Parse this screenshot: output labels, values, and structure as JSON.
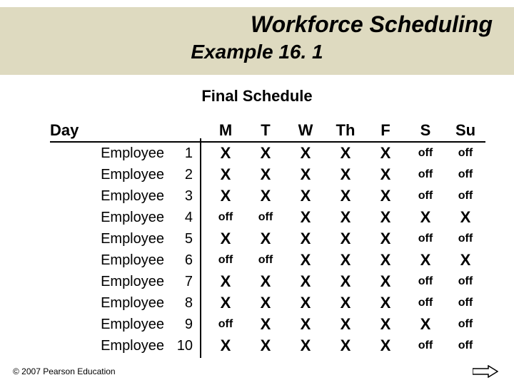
{
  "title": "Workforce Scheduling",
  "subtitle": "Example 16. 1",
  "section_title": "Final Schedule",
  "day_label": "Day",
  "days": [
    "M",
    "T",
    "W",
    "Th",
    "F",
    "S",
    "Su"
  ],
  "employee_label": "Employee",
  "rows": [
    {
      "n": "1",
      "cells": [
        "X",
        "X",
        "X",
        "X",
        "X",
        "off",
        "off"
      ]
    },
    {
      "n": "2",
      "cells": [
        "X",
        "X",
        "X",
        "X",
        "X",
        "off",
        "off"
      ]
    },
    {
      "n": "3",
      "cells": [
        "X",
        "X",
        "X",
        "X",
        "X",
        "off",
        "off"
      ]
    },
    {
      "n": "4",
      "cells": [
        "off",
        "off",
        "X",
        "X",
        "X",
        "X",
        "X"
      ]
    },
    {
      "n": "5",
      "cells": [
        "X",
        "X",
        "X",
        "X",
        "X",
        "off",
        "off"
      ]
    },
    {
      "n": "6",
      "cells": [
        "off",
        "off",
        "X",
        "X",
        "X",
        "X",
        "X"
      ]
    },
    {
      "n": "7",
      "cells": [
        "X",
        "X",
        "X",
        "X",
        "X",
        "off",
        "off"
      ]
    },
    {
      "n": "8",
      "cells": [
        "X",
        "X",
        "X",
        "X",
        "X",
        "off",
        "off"
      ]
    },
    {
      "n": "9",
      "cells": [
        "off",
        "X",
        "X",
        "X",
        "X",
        "X",
        "off"
      ]
    },
    {
      "n": "10",
      "cells": [
        "X",
        "X",
        "X",
        "X",
        "X",
        "off",
        "off"
      ]
    }
  ],
  "footer": "© 2007 Pearson Education",
  "colors": {
    "header_band": "#dedac0",
    "text": "#000000",
    "background": "#ffffff"
  }
}
